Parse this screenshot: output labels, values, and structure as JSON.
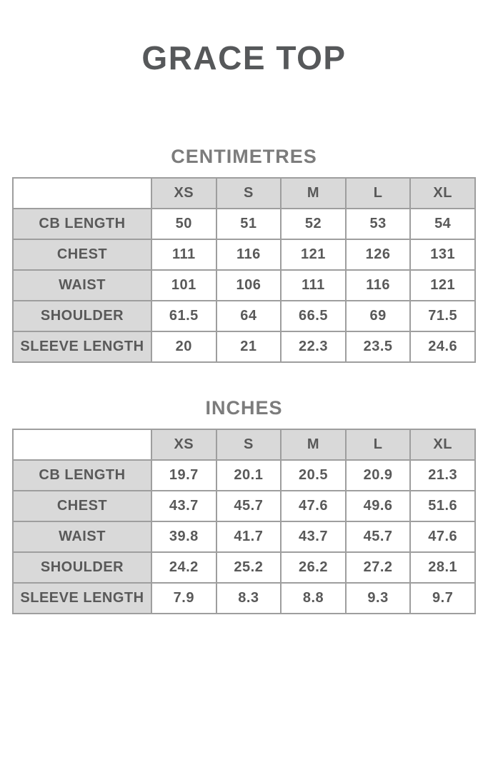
{
  "page": {
    "title": "GRACE TOP"
  },
  "sizes": [
    "XS",
    "S",
    "M",
    "L",
    "XL"
  ],
  "tables": [
    {
      "heading": "CENTIMETRES",
      "rows": [
        {
          "label": "CB LENGTH",
          "values": [
            "50",
            "51",
            "52",
            "53",
            "54"
          ]
        },
        {
          "label": "CHEST",
          "values": [
            "111",
            "116",
            "121",
            "126",
            "131"
          ]
        },
        {
          "label": "WAIST",
          "values": [
            "101",
            "106",
            "111",
            "116",
            "121"
          ]
        },
        {
          "label": "SHOULDER",
          "values": [
            "61.5",
            "64",
            "66.5",
            "69",
            "71.5"
          ]
        },
        {
          "label": "SLEEVE LENGTH",
          "values": [
            "20",
            "21",
            "22.3",
            "23.5",
            "24.6"
          ]
        }
      ]
    },
    {
      "heading": "INCHES",
      "rows": [
        {
          "label": "CB LENGTH",
          "values": [
            "19.7",
            "20.1",
            "20.5",
            "20.9",
            "21.3"
          ]
        },
        {
          "label": "CHEST",
          "values": [
            "43.7",
            "45.7",
            "47.6",
            "49.6",
            "51.6"
          ]
        },
        {
          "label": "WAIST",
          "values": [
            "39.8",
            "41.7",
            "43.7",
            "45.7",
            "47.6"
          ]
        },
        {
          "label": "SHOULDER",
          "values": [
            "24.2",
            "25.2",
            "26.2",
            "27.2",
            "28.1"
          ]
        },
        {
          "label": "SLEEVE LENGTH",
          "values": [
            "7.9",
            "8.3",
            "8.8",
            "9.3",
            "9.7"
          ]
        }
      ]
    }
  ],
  "colors": {
    "title_text": "#56585a",
    "heading_text": "#7c7c7c",
    "cell_text": "#595959",
    "header_cell_bg": "#d9d9d9",
    "table_border": "#9e9e9e",
    "background": "#ffffff"
  }
}
